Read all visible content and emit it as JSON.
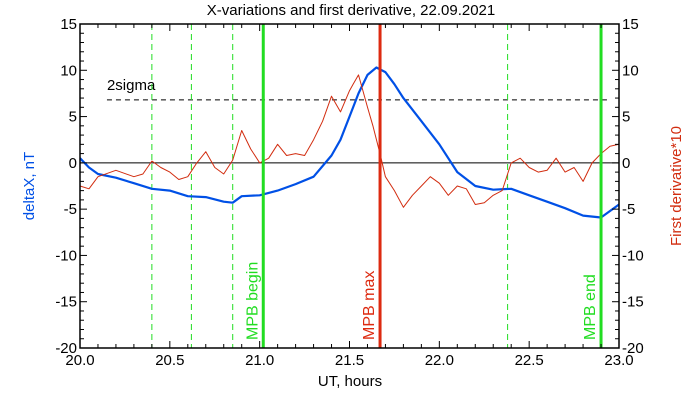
{
  "chart_data": {
    "type": "line",
    "title": "X-variations and first derivative, 22.09.2021",
    "xlabel": "UT, hours",
    "ylabel_left": "deltaX, nT",
    "ylabel_right": "First derivative*10",
    "xlim": [
      20.0,
      23.0
    ],
    "ylim": [
      -20,
      15
    ],
    "x_ticks": [
      "20.0",
      "20.5",
      "21.0",
      "21.5",
      "22.0",
      "22.5",
      "23.0"
    ],
    "y_ticks": [
      "15",
      "10",
      "5",
      "0",
      "-5",
      "-10",
      "-15",
      "-20"
    ],
    "grid": false,
    "colors": {
      "deltaX": "#0050e6",
      "derivative": "#d22d10",
      "mpb_begin_end": "#22dd22",
      "mpb_max": "#dd2a10",
      "axes": "#000000"
    },
    "threshold": {
      "label": "2sigma",
      "y": 6.8
    },
    "zero_line": 0,
    "dashed_vlines_x": [
      20.4,
      20.62,
      20.85,
      22.38,
      22.9
    ],
    "markers": [
      {
        "label": "MPB begin",
        "x": 21.02
      },
      {
        "label": "MPB max",
        "x": 21.67
      },
      {
        "label": "MPB end",
        "x": 22.9
      }
    ],
    "series": [
      {
        "key": "deltaX",
        "x": [
          20.0,
          20.05,
          20.1,
          20.2,
          20.3,
          20.4,
          20.5,
          20.6,
          20.7,
          20.8,
          20.85,
          20.9,
          21.0,
          21.1,
          21.2,
          21.3,
          21.4,
          21.45,
          21.5,
          21.55,
          21.6,
          21.65,
          21.7,
          21.75,
          21.8,
          21.9,
          22.0,
          22.1,
          22.2,
          22.3,
          22.4,
          22.5,
          22.6,
          22.7,
          22.8,
          22.9,
          23.0
        ],
        "values": [
          0.5,
          -0.5,
          -1.2,
          -1.6,
          -2.2,
          -2.8,
          -3.0,
          -3.6,
          -3.7,
          -4.2,
          -4.3,
          -3.6,
          -3.5,
          -3.0,
          -2.3,
          -1.5,
          0.8,
          2.5,
          5.0,
          7.5,
          9.5,
          10.3,
          9.8,
          8.5,
          7.0,
          4.5,
          2.0,
          -1.0,
          -2.5,
          -2.9,
          -2.8,
          -3.5,
          -4.2,
          -4.9,
          -5.7,
          -5.9,
          -4.5
        ]
      },
      {
        "key": "derivative",
        "x": [
          20.0,
          20.05,
          20.1,
          20.2,
          20.3,
          20.35,
          20.4,
          20.45,
          20.5,
          20.55,
          20.6,
          20.65,
          20.7,
          20.75,
          20.8,
          20.85,
          20.9,
          20.95,
          21.0,
          21.05,
          21.1,
          21.15,
          21.2,
          21.25,
          21.3,
          21.35,
          21.4,
          21.45,
          21.5,
          21.52,
          21.55,
          21.6,
          21.63,
          21.67,
          21.7,
          21.75,
          21.8,
          21.85,
          21.9,
          21.95,
          22.0,
          22.05,
          22.1,
          22.15,
          22.2,
          22.25,
          22.3,
          22.35,
          22.4,
          22.45,
          22.5,
          22.55,
          22.6,
          22.65,
          22.7,
          22.75,
          22.8,
          22.85,
          22.9,
          22.95,
          23.0
        ],
        "values": [
          -2.5,
          -2.8,
          -1.5,
          -0.8,
          -1.5,
          -1.2,
          0.2,
          -0.5,
          -1.0,
          -1.8,
          -1.5,
          0.0,
          1.2,
          -0.5,
          -1.2,
          0.3,
          3.5,
          1.5,
          0.0,
          0.5,
          2.0,
          0.8,
          1.0,
          0.8,
          2.5,
          4.5,
          7.2,
          5.5,
          7.8,
          8.5,
          9.5,
          6.0,
          4.0,
          1.0,
          -1.5,
          -3.0,
          -4.8,
          -3.5,
          -2.5,
          -1.5,
          -2.2,
          -3.5,
          -2.5,
          -2.8,
          -4.5,
          -4.3,
          -3.5,
          -3.0,
          0.0,
          0.5,
          -0.5,
          -1.0,
          -0.8,
          0.5,
          -1.0,
          -0.5,
          -2.0,
          0.0,
          1.0,
          1.8,
          2.0
        ]
      }
    ]
  }
}
